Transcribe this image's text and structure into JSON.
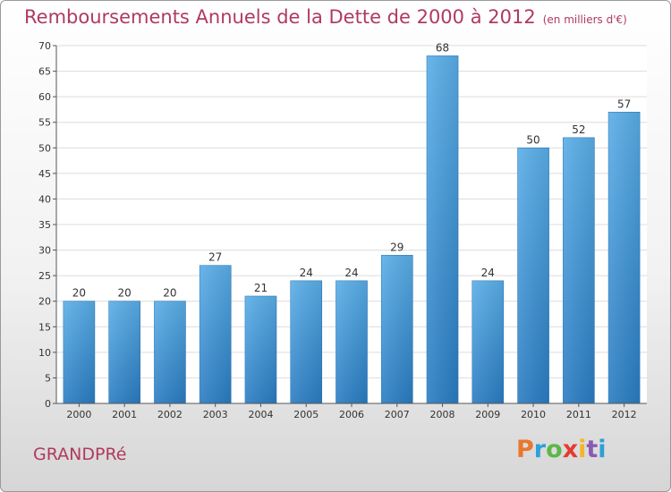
{
  "header": {
    "title": "Remboursements Annuels de la Dette de 2000 à 2012",
    "unit": "(en milliers d'€)"
  },
  "footer": {
    "commune": "GRANDPRé",
    "logo_letters": [
      "P",
      "r",
      "o",
      "x",
      "i",
      "t",
      "i"
    ],
    "logo_colors": [
      "#e8772e",
      "#2e9fd8",
      "#5bb846",
      "#e63a2f",
      "#f2b62a",
      "#8a5bb0",
      "#2e9fd8"
    ]
  },
  "chart_data": {
    "type": "bar",
    "title": "Remboursements Annuels de la Dette de 2000 à 2012",
    "categories": [
      "2000",
      "2001",
      "2002",
      "2003",
      "2004",
      "2005",
      "2006",
      "2007",
      "2008",
      "2009",
      "2010",
      "2011",
      "2012"
    ],
    "values": [
      20,
      20,
      20,
      27,
      21,
      24,
      24,
      29,
      68,
      24,
      50,
      52,
      57
    ],
    "data_labels": [
      "20",
      "20",
      "20",
      "27",
      "21",
      "24",
      "24",
      "29",
      "68",
      "24",
      "50",
      "52",
      "57"
    ],
    "xlabel": "",
    "ylabel": "",
    "ylim": [
      0,
      70
    ],
    "yticks": [
      0,
      5,
      10,
      15,
      20,
      25,
      30,
      35,
      40,
      45,
      50,
      55,
      60,
      65,
      70
    ],
    "ytick_labels": [
      "0",
      "5",
      "10",
      "15",
      "20",
      "25",
      "30",
      "35",
      "40",
      "45",
      "50",
      "55",
      "60",
      "65",
      "70"
    ],
    "grid": true,
    "bar_color": "#4a9fde",
    "legend": "none"
  }
}
